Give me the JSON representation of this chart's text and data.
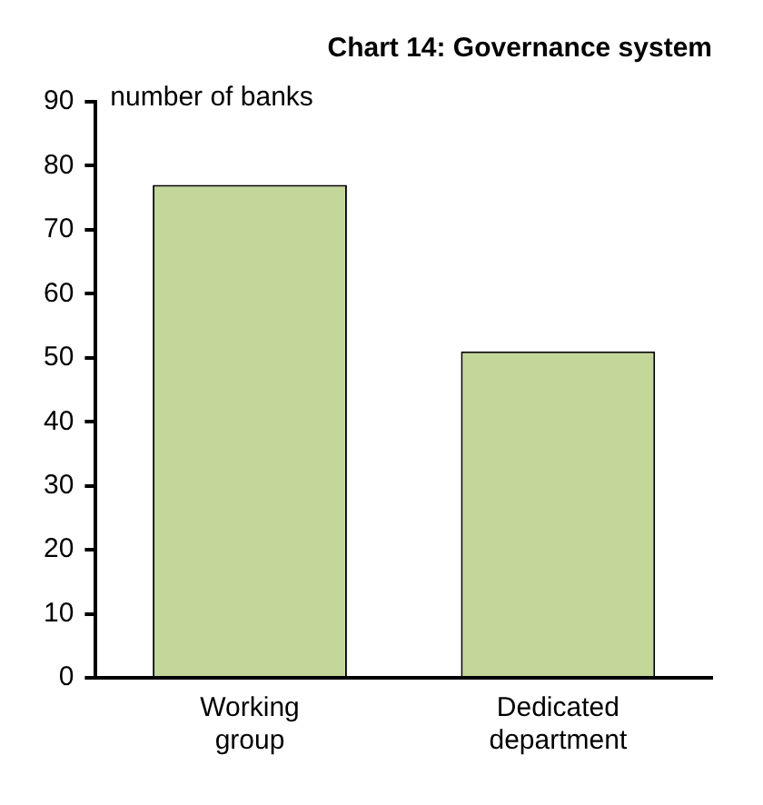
{
  "chart_data": {
    "type": "bar",
    "title": "Chart 14: Governance system",
    "ylabel": "number of banks",
    "categories": [
      "Working group",
      "Dedicated department"
    ],
    "series": [
      {
        "color": "#c4d79b",
        "values": [
          77,
          51
        ]
      }
    ],
    "ylim": [
      0,
      90
    ],
    "yticks": [
      0,
      10,
      20,
      30,
      40,
      50,
      60,
      70,
      80,
      90
    ],
    "grid": false,
    "legend": false
  }
}
